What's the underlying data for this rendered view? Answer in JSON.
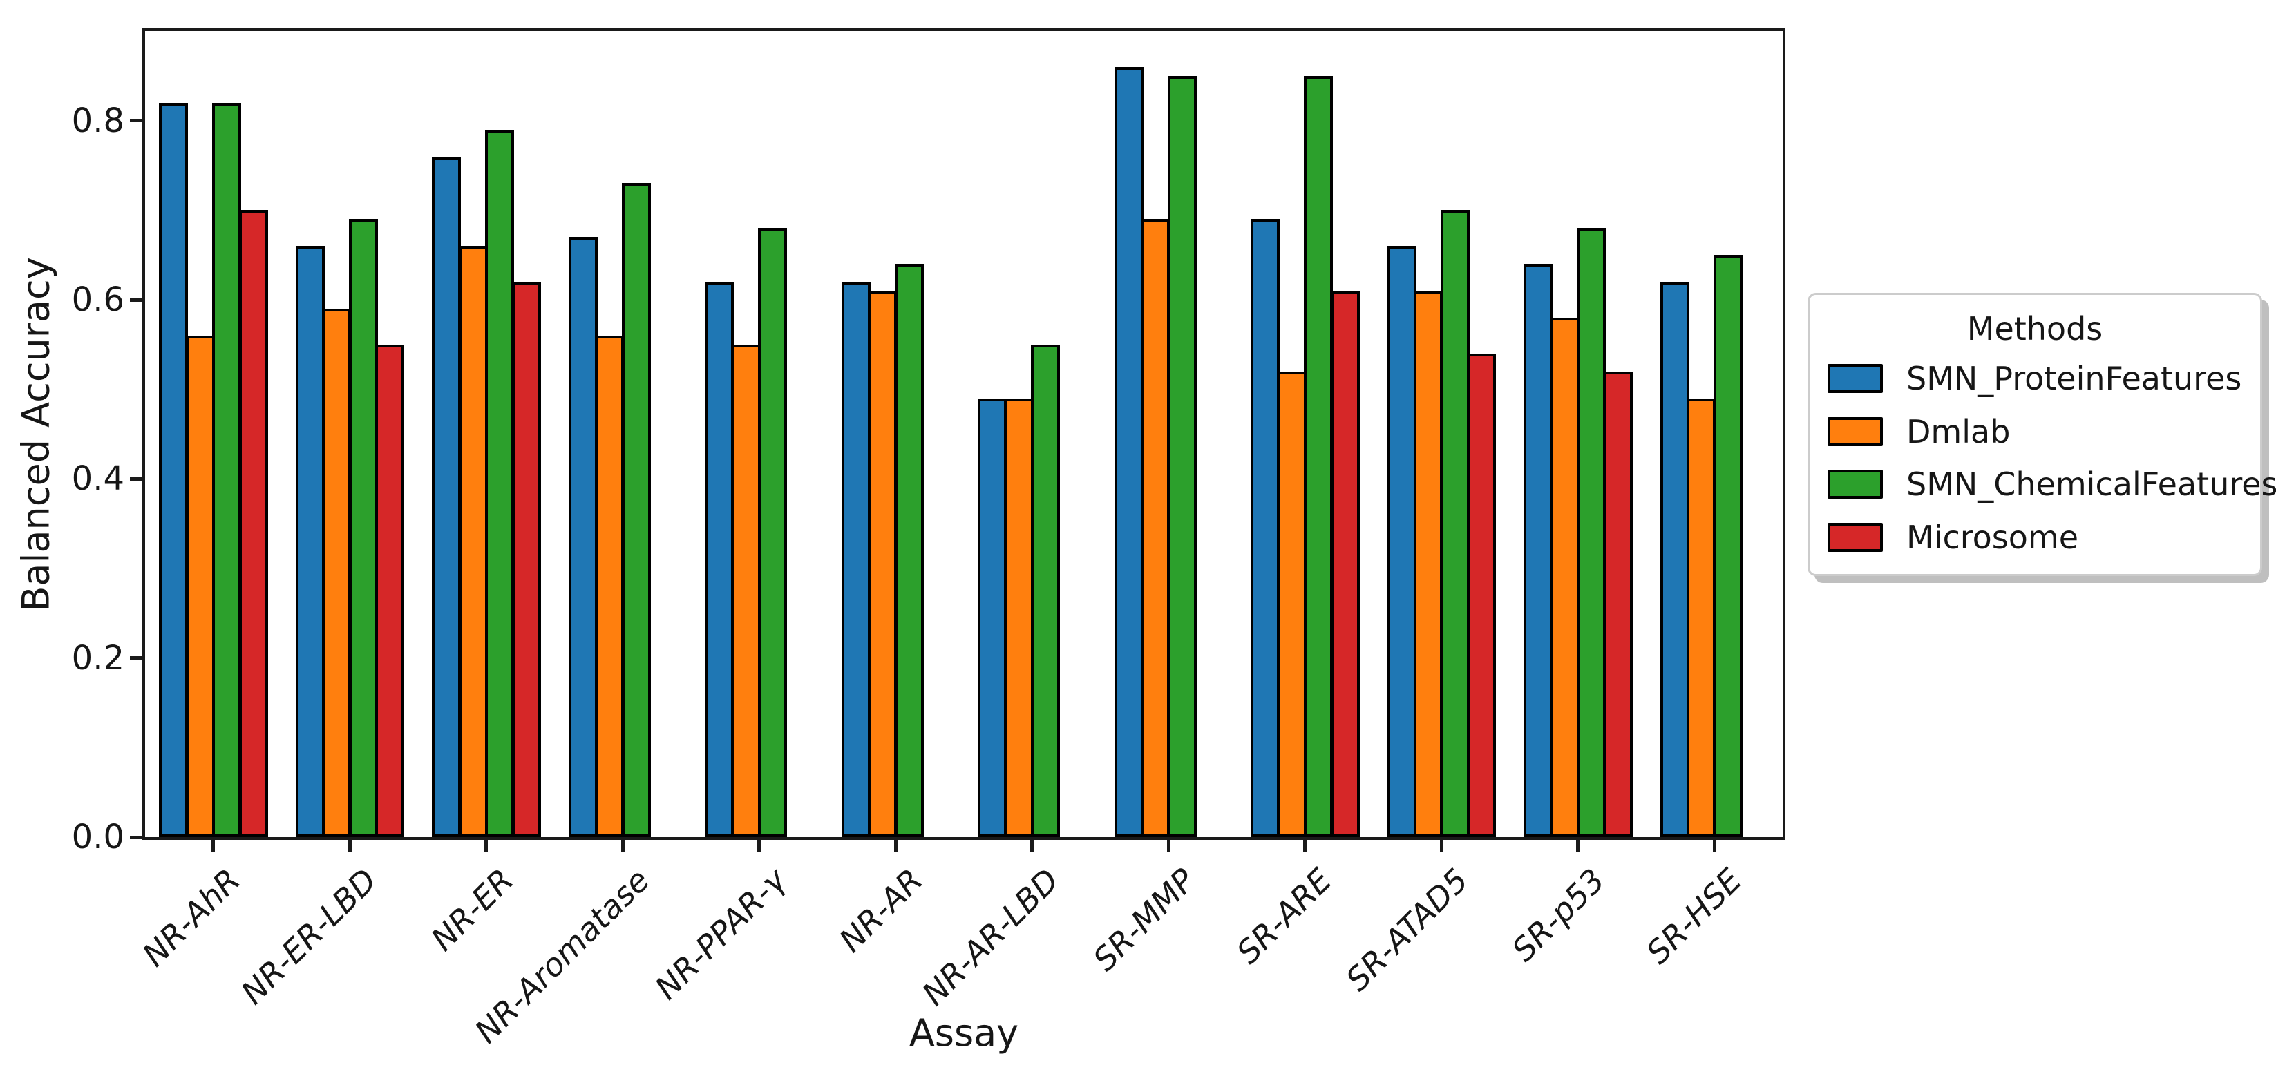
{
  "chart_data": {
    "type": "bar",
    "title": "",
    "xlabel": "Assay",
    "ylabel": "Balanced Accuracy",
    "categories": [
      "NR-AhR",
      "NR-ER-LBD",
      "NR-ER",
      "NR-Aromatase",
      "NR-PPAR-γ",
      "NR-AR",
      "NR-AR-LBD",
      "SR-MMP",
      "SR-ARE",
      "SR-ATAD5",
      "SR-p53",
      "SR-HSE"
    ],
    "series": [
      {
        "name": "SMN_ProteinFeatures",
        "color": "#1f77b4",
        "values": [
          0.82,
          0.66,
          0.76,
          0.67,
          0.62,
          0.62,
          0.49,
          0.86,
          0.69,
          0.66,
          0.64,
          0.62
        ]
      },
      {
        "name": "Dmlab",
        "color": "#ff7f0e",
        "values": [
          0.56,
          0.59,
          0.66,
          0.56,
          0.55,
          0.61,
          0.49,
          0.69,
          0.52,
          0.61,
          0.58,
          0.49
        ]
      },
      {
        "name": "SMN_ChemicalFeatures",
        "color": "#2ca02c",
        "values": [
          0.82,
          0.69,
          0.79,
          0.73,
          0.68,
          0.64,
          0.55,
          0.85,
          0.85,
          0.7,
          0.68,
          0.65
        ]
      },
      {
        "name": "Microsome",
        "color": "#d62728",
        "values": [
          0.7,
          0.55,
          0.62,
          null,
          null,
          null,
          null,
          null,
          0.61,
          0.54,
          0.52,
          null
        ]
      }
    ],
    "y_tick_labels": [
      "0.0",
      "0.2",
      "0.4",
      "0.6",
      "0.8"
    ],
    "y_ticks": [
      0.0,
      0.2,
      0.4,
      0.6,
      0.8
    ],
    "ylim": [
      0,
      0.9
    ],
    "grid": false,
    "bar_edge_color": "#000000",
    "legend": {
      "title": "Methods",
      "position": "right"
    }
  }
}
